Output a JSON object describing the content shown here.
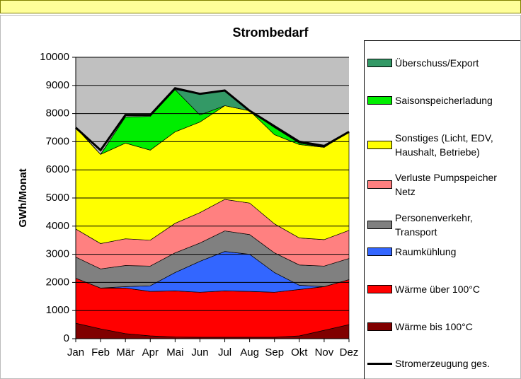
{
  "chart_data": {
    "type": "area",
    "stacked": true,
    "title": "Strombedarf",
    "y_label": "GWh/Monat",
    "categories": [
      "Jan",
      "Feb",
      "Mär",
      "Apr",
      "Mai",
      "Jun",
      "Jul",
      "Aug",
      "Sep",
      "Okt",
      "Nov",
      "Dez"
    ],
    "ylim": [
      0,
      10000
    ],
    "yticks": [
      0,
      1000,
      2000,
      3000,
      4000,
      5000,
      6000,
      7000,
      8000,
      9000,
      10000
    ],
    "grid": true,
    "series": [
      {
        "name": "Wärme bis 100°C",
        "color": "#800000",
        "values": [
          550,
          350,
          180,
          100,
          60,
          50,
          50,
          50,
          50,
          100,
          300,
          500
        ]
      },
      {
        "name": "Wärme über 100°C",
        "color": "#ff0000",
        "values": [
          1600,
          1450,
          1620,
          1580,
          1640,
          1600,
          1650,
          1630,
          1600,
          1650,
          1550,
          1600
        ]
      },
      {
        "name": "Raumkühlung",
        "color": "#3366ff",
        "values": [
          0,
          0,
          50,
          200,
          650,
          1100,
          1400,
          1320,
          700,
          150,
          0,
          0
        ]
      },
      {
        "name": "Personenverkehr, Transport",
        "color": "#808080",
        "values": [
          750,
          680,
          750,
          700,
          700,
          650,
          730,
          700,
          700,
          720,
          730,
          750
        ]
      },
      {
        "name": "Verluste Pumpspeicher Netz",
        "color": "#ff8080",
        "values": [
          1000,
          900,
          950,
          920,
          1050,
          1080,
          1120,
          1120,
          1030,
          960,
          940,
          1000
        ]
      },
      {
        "name": "Sonstiges (Licht, EDV, Haushalt, Betriebe)",
        "color": "#ffff00",
        "values": [
          3600,
          3170,
          3400,
          3200,
          3250,
          3220,
          3330,
          3280,
          3170,
          3320,
          3280,
          3500
        ]
      },
      {
        "name": "Saisonspeicherladung",
        "color": "#00ee00",
        "values": [
          0,
          0,
          930,
          1200,
          1500,
          250,
          0,
          0,
          250,
          50,
          0,
          0
        ]
      },
      {
        "name": "Überschuss/Export",
        "color": "#339966",
        "values": [
          0,
          0,
          0,
          0,
          0,
          750,
          520,
          0,
          0,
          0,
          0,
          0
        ]
      },
      {
        "name": "Stromerzeugung ges.",
        "type": "line",
        "color": "#000000",
        "values": [
          7500,
          6700,
          7950,
          7950,
          8900,
          8700,
          8820,
          8100,
          7550,
          7000,
          6850,
          7350
        ]
      }
    ]
  }
}
